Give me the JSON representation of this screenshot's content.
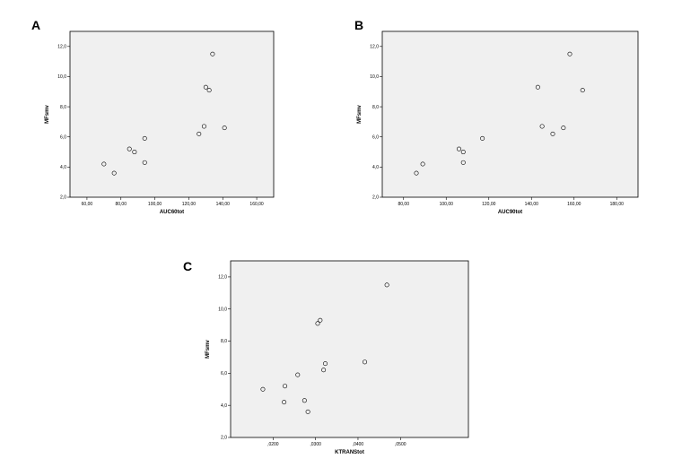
{
  "chart_data": [
    {
      "panel": "A",
      "type": "scatter",
      "xlabel": "AUC60tot",
      "ylabel": "MFsmv",
      "xlim": [
        50,
        170
      ],
      "ylim": [
        2,
        13
      ],
      "xticks": [
        "60,00",
        "80,00",
        "100,00",
        "120,00",
        "140,00",
        "160,00"
      ],
      "yticks": [
        "2,0",
        "4,0",
        "6,0",
        "8,0",
        "10,0",
        "12,0"
      ],
      "xtick_values": [
        60,
        80,
        100,
        120,
        140,
        160
      ],
      "ytick_values": [
        2,
        4,
        6,
        8,
        10,
        12
      ],
      "points": [
        [
          70,
          4.2
        ],
        [
          76,
          3.6
        ],
        [
          85,
          5.2
        ],
        [
          88,
          5.0
        ],
        [
          94,
          5.9
        ],
        [
          94,
          4.3
        ],
        [
          126,
          6.2
        ],
        [
          129,
          6.7
        ],
        [
          130,
          9.3
        ],
        [
          132,
          9.1
        ],
        [
          134,
          11.5
        ],
        [
          141,
          6.6
        ]
      ]
    },
    {
      "panel": "B",
      "type": "scatter",
      "xlabel": "AUC90tot",
      "ylabel": "MFsmv",
      "xlim": [
        70,
        190
      ],
      "ylim": [
        2,
        13
      ],
      "xticks": [
        "80,00",
        "100,00",
        "120,00",
        "140,00",
        "160,00",
        "180,00"
      ],
      "yticks": [
        "2,0",
        "4,0",
        "6,0",
        "8,0",
        "10,0",
        "12,0"
      ],
      "xtick_values": [
        80,
        100,
        120,
        140,
        160,
        180
      ],
      "ytick_values": [
        2,
        4,
        6,
        8,
        10,
        12
      ],
      "points": [
        [
          86,
          3.6
        ],
        [
          89,
          4.2
        ],
        [
          106,
          5.2
        ],
        [
          108,
          5.0
        ],
        [
          108,
          4.3
        ],
        [
          117,
          5.9
        ],
        [
          143,
          9.3
        ],
        [
          145,
          6.7
        ],
        [
          150,
          6.2
        ],
        [
          155,
          6.6
        ],
        [
          158,
          11.5
        ],
        [
          164,
          9.1
        ]
      ]
    },
    {
      "panel": "C",
      "type": "scatter",
      "xlabel": "KTRANStot",
      "ylabel": "MFsmv",
      "xlim": [
        0.01,
        0.066
      ],
      "ylim": [
        2,
        13
      ],
      "xticks": [
        ",0200",
        ",0300",
        ",0400",
        ",0500"
      ],
      "yticks": [
        "2,0",
        "4,0",
        "6,0",
        "8,0",
        "10,0",
        "12,0"
      ],
      "xtick_values": [
        0.02,
        0.03,
        0.04,
        0.05
      ],
      "ytick_values": [
        2,
        4,
        6,
        8,
        10,
        12
      ],
      "points": [
        [
          0.0176,
          5.0
        ],
        [
          0.0226,
          4.2
        ],
        [
          0.0228,
          5.2
        ],
        [
          0.0258,
          5.9
        ],
        [
          0.0274,
          4.3
        ],
        [
          0.0282,
          3.6
        ],
        [
          0.0305,
          9.1
        ],
        [
          0.0311,
          9.3
        ],
        [
          0.0319,
          6.2
        ],
        [
          0.0323,
          6.6
        ],
        [
          0.0416,
          6.7
        ],
        [
          0.0468,
          11.5
        ]
      ]
    }
  ]
}
